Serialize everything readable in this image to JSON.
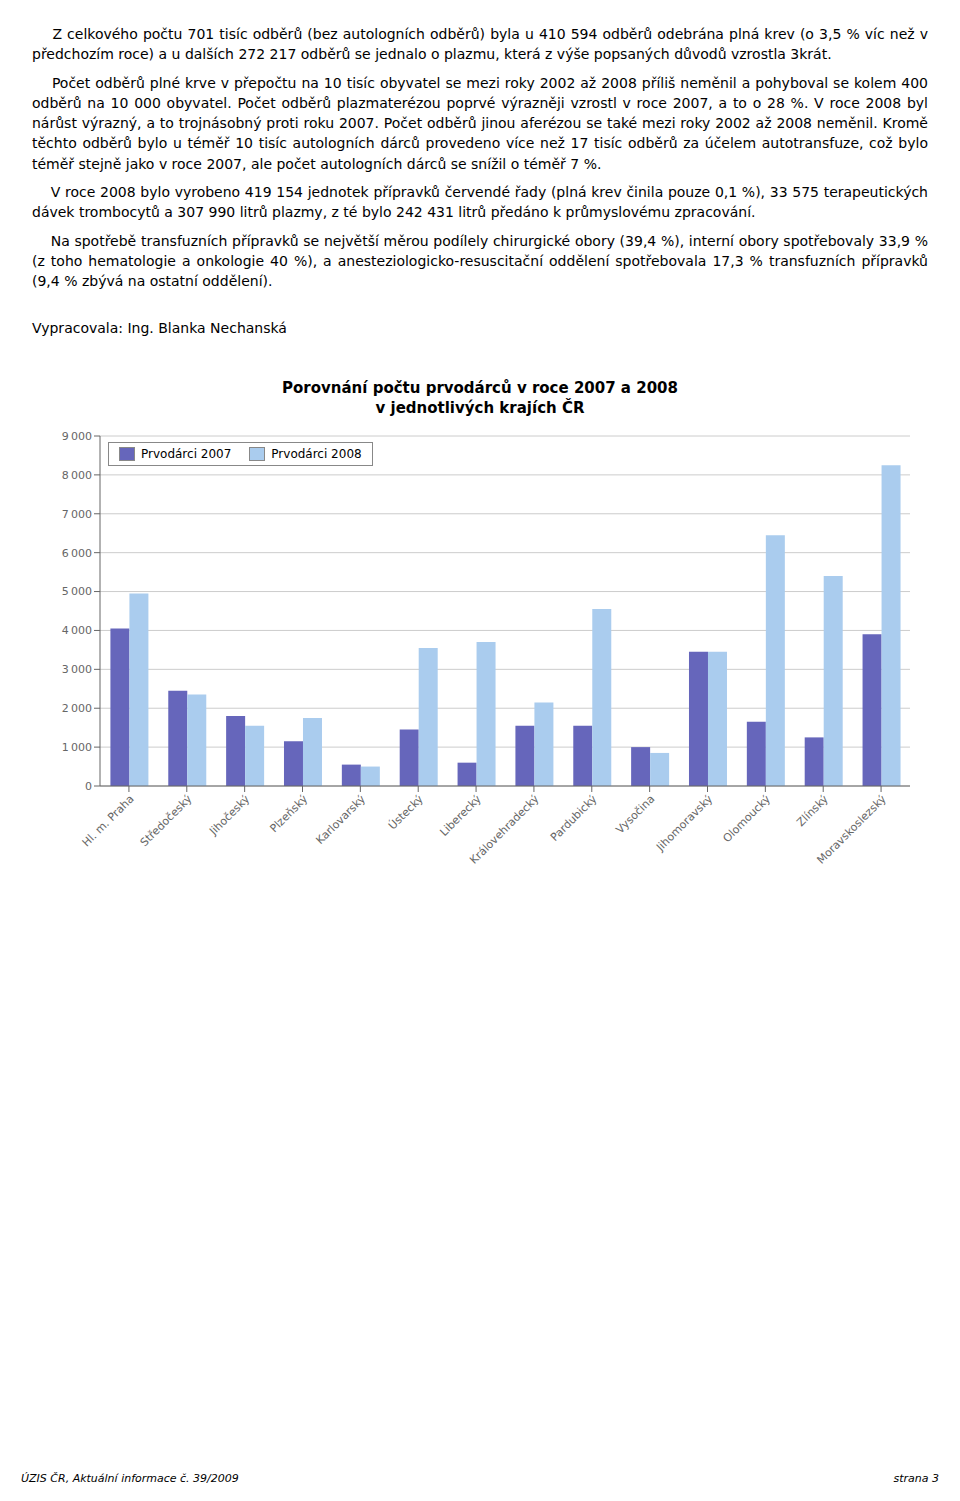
{
  "chart_data": {
    "type": "bar",
    "title": "Porovnání počtu prvodárců v roce 2007 a 2008",
    "subtitle": "v jednotlivých krajích ČR",
    "categories": [
      "Hl. m. Praha",
      "Středočeský",
      "Jihočeský",
      "Plzeňský",
      "Karlovarský",
      "Ústecký",
      "Liberecký",
      "Královehradecký",
      "Pardubický",
      "Vysočina",
      "Jihomoravský",
      "Olomoucký",
      "Zlínský",
      "Moravskoslezský"
    ],
    "series": [
      {
        "name": "Prvodárci 2007",
        "color": "#6666bb",
        "values": [
          4050,
          2450,
          1800,
          1150,
          550,
          1450,
          600,
          1550,
          1550,
          1000,
          3450,
          1650,
          1250,
          3900
        ]
      },
      {
        "name": "Prvodárci 2008",
        "color": "#aaccee",
        "values": [
          4950,
          2350,
          1550,
          1750,
          500,
          3550,
          3700,
          2150,
          4550,
          850,
          3450,
          6450,
          5400,
          8250
        ]
      }
    ],
    "ylim": [
      0,
      9000
    ],
    "yticks": [
      0,
      {
        "value": 1000,
        "label": "1 000"
      },
      {
        "value": 2000,
        "label": "2 000"
      },
      {
        "value": 3000,
        "label": "3 000"
      },
      {
        "value": 4000,
        "label": "4 000"
      },
      {
        "value": 5000,
        "label": "5 000"
      },
      {
        "value": 6000,
        "label": "6 000"
      },
      {
        "value": 7000,
        "label": "7 000"
      },
      {
        "value": 8000,
        "label": "8 000"
      },
      {
        "value": 9000,
        "label": "9 000"
      }
    ],
    "grid": true,
    "legend": "upper left",
    "annotations": [
      "    Z celkového počtu 701 tisíc odběrů (bez autologních odběrů) byla u 410 594 odběrů odebrána plná krev (o 3,5 % víc než v předchozím roce) a u dalších 272 217 odběrů se jednalo o plazmu, která z výše popsaných důvodů vzrostla 3krát.",
      "    Počet odběrů plné krve v přepočtu na 10 tisíc obyvatel se mezi roky 2002 až 2008 příliš neměnil a pohyboval se kolem 400 odběrů na 10 000 obyvatel. Počet odběrů plazmaterézou poprvé výrazněji vzrostl v roce 2007, a to o 28 %. V roce 2008 byl nárůst výrazný, a to trojnásobný proti roku 2007. Počet odběrů jinou aferézou se také mezi roky 2002 až 2008 neměnil. Kromě těchto odběrů bylo u téměř 10 tisíc autologních dárců provedeno více než 17 tisíc odběrů za účelem autotransfuze, což bylo téměř stejně jako v roce 2007, ale počet autologních dárců se snížil o téměř 7 %.",
      "    V roce 2008 bylo vyrobeno 419 154 jednotek přípravků červendé řady (plná krev činila pouze 0,1 %), 33 575 terapeutických dávek trombocytů a 307 990 litrů plazmy, z té bylo 242 431 litrů předáno k průmyslovému zpracování.",
      "    Na spotřebě transfuzních přípravků se největší měrou podílely chirurgické obory (39,4 %), interní obory spotřebovaly 33,9 % (z toho hematologie a onkologie 40 %), a anesteziologicko-resuscitační oddělení spotřebovala 17,3 % transfuzních přípravků (9,4 % zbývá na ostatní oddělení).",
      "Vypracovala: Ing. Blanka Nechanská",
      "ÚZIS ČR, Aktuální informace č. 39/2009",
      "strana 3"
    ]
  }
}
